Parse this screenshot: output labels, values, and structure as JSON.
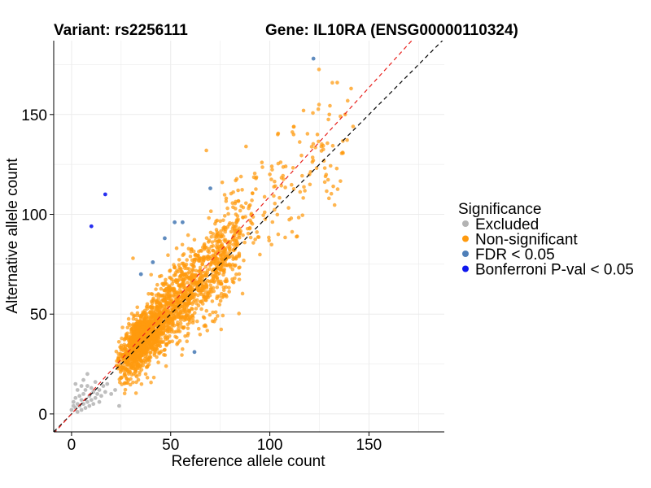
{
  "chart_data": {
    "type": "scatter",
    "title_left": "Variant: rs2256111",
    "title_right": "Gene: IL10RA (ENSG00000110324)",
    "xlabel": "Reference allele count",
    "ylabel": "Alternative allele count",
    "xlim": [
      -9,
      188
    ],
    "ylim": [
      -9,
      187
    ],
    "x_ticks": [
      0,
      50,
      100,
      150
    ],
    "y_ticks": [
      0,
      50,
      100,
      150
    ],
    "grid": true,
    "reference_lines": [
      {
        "slope": 1.0,
        "intercept": 0,
        "color": "#000000",
        "style": "dashed"
      },
      {
        "slope": 1.09,
        "intercept": 0,
        "color": "#e8201c",
        "style": "dashed"
      }
    ],
    "legend": {
      "title": "Significance",
      "position": "right",
      "entries": [
        {
          "label": "Excluded",
          "color": "#b3b3b3"
        },
        {
          "label": "Non-significant",
          "color": "#ff9a0e"
        },
        {
          "label": "FDR < 0.05",
          "color": "#4f7fb8"
        },
        {
          "label": "Bonferroni P-val < 0.05",
          "color": "#0f18ee"
        }
      ]
    },
    "series": [
      {
        "name": "Excluded",
        "color": "#b3b3b3",
        "points": [
          [
            0,
            2
          ],
          [
            1,
            4
          ],
          [
            1,
            6
          ],
          [
            2,
            3
          ],
          [
            2,
            8
          ],
          [
            3,
            1
          ],
          [
            3,
            5
          ],
          [
            4,
            4
          ],
          [
            4,
            9
          ],
          [
            5,
            2
          ],
          [
            5,
            7
          ],
          [
            6,
            5
          ],
          [
            6,
            10
          ],
          [
            7,
            3
          ],
          [
            7,
            12
          ],
          [
            8,
            6
          ],
          [
            8,
            14
          ],
          [
            9,
            4
          ],
          [
            9,
            9
          ],
          [
            10,
            7
          ],
          [
            10,
            13
          ],
          [
            11,
            5
          ],
          [
            11,
            11
          ],
          [
            12,
            8
          ],
          [
            12,
            16
          ],
          [
            13,
            10
          ],
          [
            14,
            12
          ],
          [
            14,
            6
          ],
          [
            15,
            9
          ],
          [
            16,
            14
          ],
          [
            17,
            11
          ],
          [
            18,
            15
          ],
          [
            3,
            12
          ],
          [
            5,
            14
          ],
          [
            2,
            15
          ],
          [
            8,
            20
          ],
          [
            6,
            17
          ],
          [
            20,
            10
          ],
          [
            22,
            12
          ],
          [
            24,
            4
          ]
        ]
      },
      {
        "name": "FDR < 0.05",
        "color": "#4f7fb8",
        "points": [
          [
            122,
            178
          ],
          [
            70,
            113
          ],
          [
            52,
            96
          ],
          [
            56,
            96
          ],
          [
            47,
            88
          ],
          [
            41,
            76
          ],
          [
            35,
            70
          ],
          [
            62,
            31
          ]
        ]
      },
      {
        "name": "Bonferroni P-val < 0.05",
        "color": "#0f18ee",
        "points": [
          [
            17,
            110
          ],
          [
            10,
            94
          ]
        ]
      }
    ],
    "nonsignificant_cloud": {
      "name": "Non-significant",
      "color": "#ff9a0e",
      "point_count": 2200,
      "x_range": [
        10,
        145
      ],
      "slope": 1.04,
      "notable_points": [
        [
          134,
          166
        ],
        [
          132,
          114
        ],
        [
          124,
          140
        ],
        [
          117,
          152
        ],
        [
          112,
          140
        ],
        [
          108,
          124
        ],
        [
          101,
          124
        ],
        [
          100,
          120
        ],
        [
          96,
          126
        ],
        [
          93,
          118
        ],
        [
          88,
          134
        ],
        [
          84,
          112
        ],
        [
          78,
          108
        ],
        [
          76,
          116
        ],
        [
          68,
          132
        ],
        [
          53,
          83
        ],
        [
          31,
          78
        ],
        [
          130,
          150
        ],
        [
          141,
          163
        ],
        [
          126,
          134
        ],
        [
          138,
          150
        ],
        [
          104,
          140
        ],
        [
          142,
          144
        ],
        [
          120,
          120
        ]
      ]
    }
  }
}
